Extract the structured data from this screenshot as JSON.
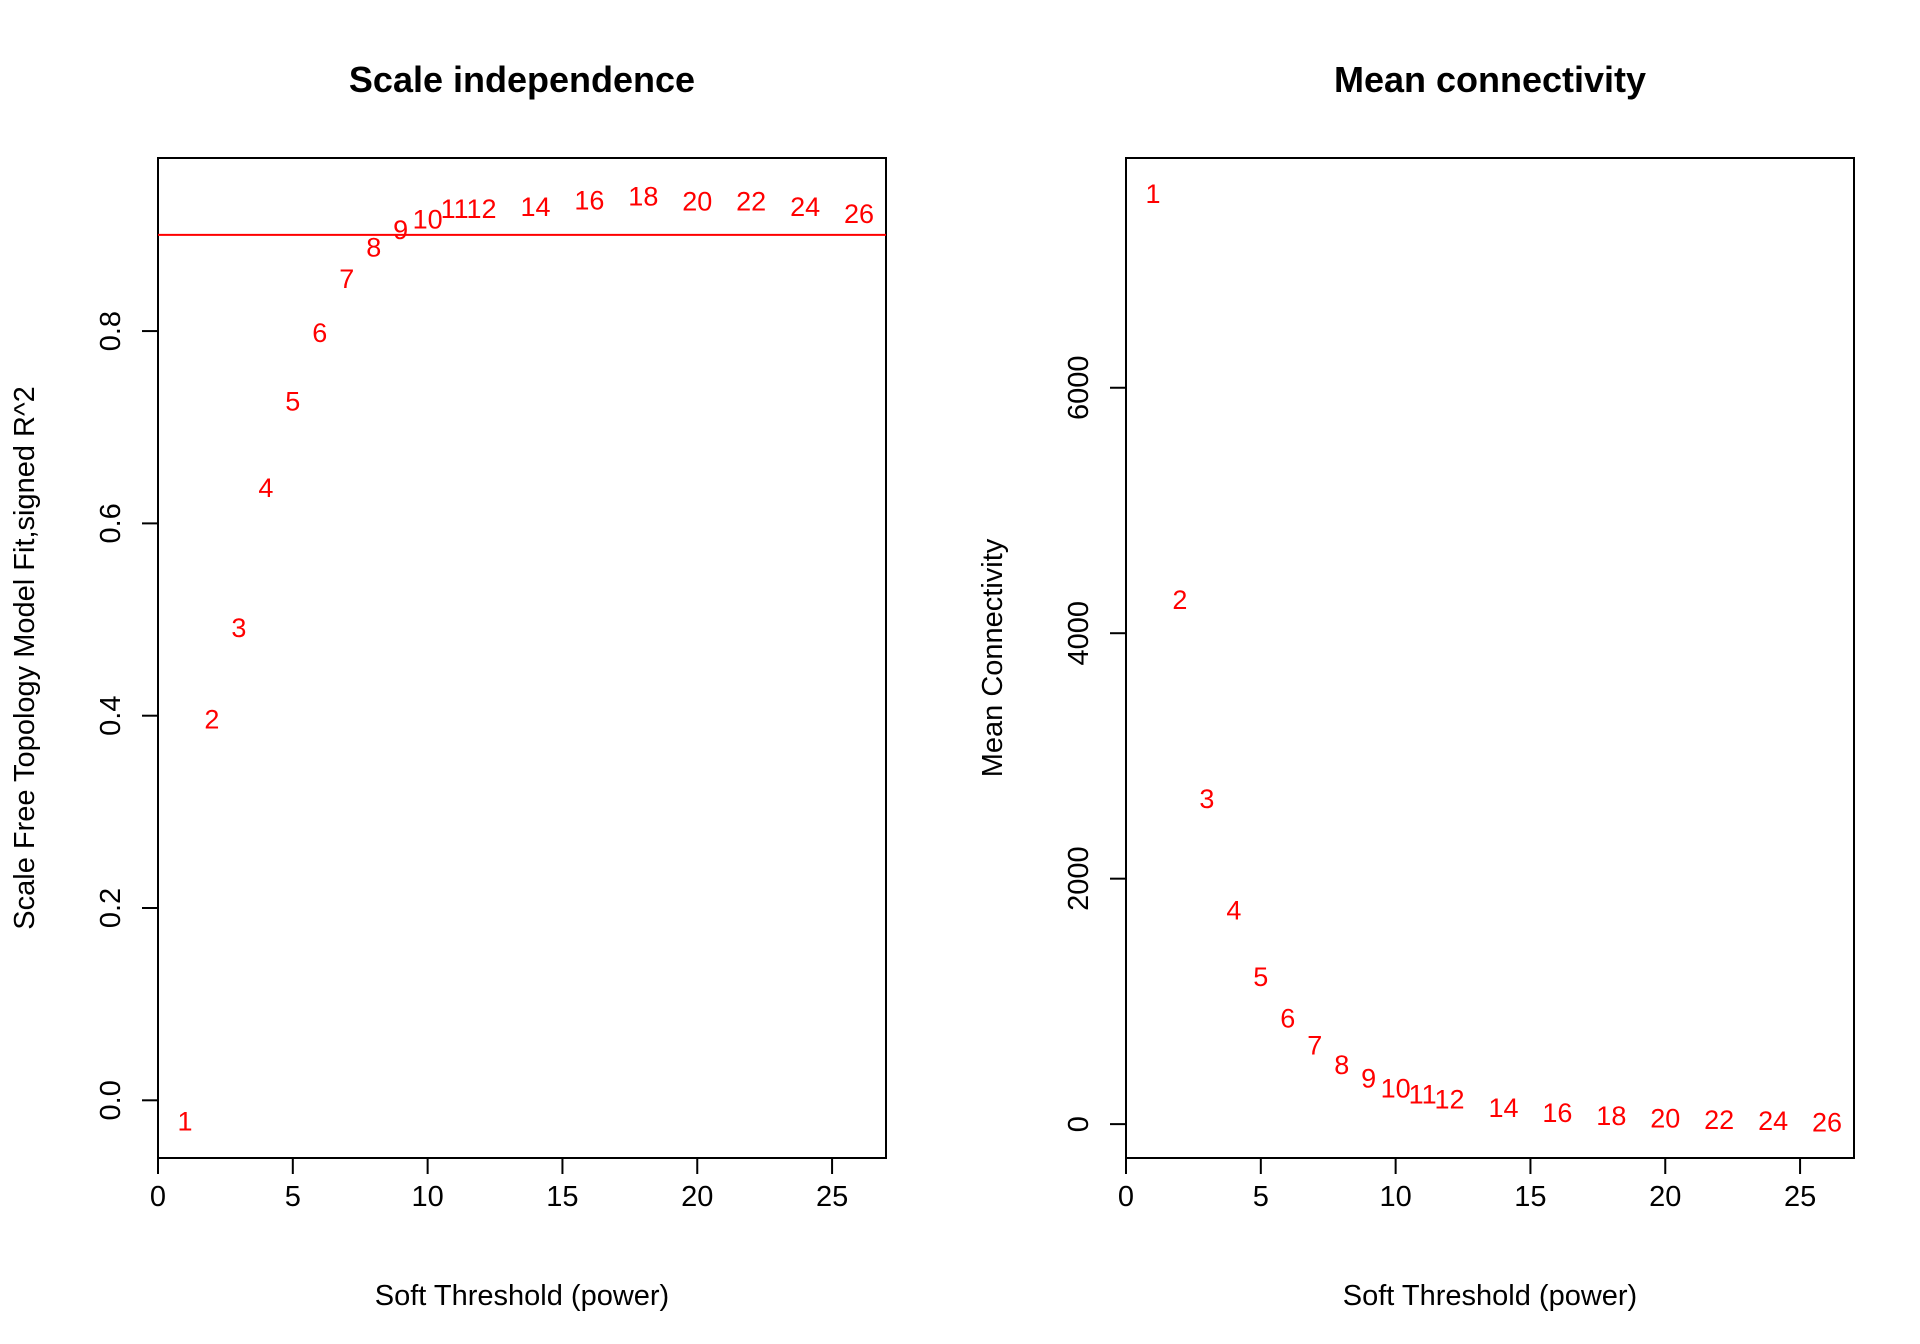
{
  "colors": {
    "points": "#ff0000",
    "abline": "#ff0000",
    "axes": "#000000",
    "background": "#ffffff"
  },
  "chart_data": [
    {
      "type": "scatter",
      "title": "Scale independence",
      "xlabel": "Soft Threshold (power)",
      "ylabel": "Scale Free Topology Model Fit,signed R^2",
      "xlim": [
        0,
        27
      ],
      "ylim": [
        -0.06,
        0.98
      ],
      "xticks": [
        0,
        5,
        10,
        15,
        20,
        25
      ],
      "yticks": [
        0.0,
        0.2,
        0.4,
        0.6,
        0.8
      ],
      "ytick_labels": [
        "0.0",
        "0.2",
        "0.4",
        "0.6",
        "0.8"
      ],
      "hline": 0.9,
      "grid": false,
      "marker": "text labels (power)",
      "points": [
        {
          "label": "1",
          "x": 1,
          "y": -0.022
        },
        {
          "label": "2",
          "x": 2,
          "y": 0.396
        },
        {
          "label": "3",
          "x": 3,
          "y": 0.491
        },
        {
          "label": "4",
          "x": 4,
          "y": 0.637
        },
        {
          "label": "5",
          "x": 5,
          "y": 0.727
        },
        {
          "label": "6",
          "x": 6,
          "y": 0.798
        },
        {
          "label": "7",
          "x": 7,
          "y": 0.854
        },
        {
          "label": "8",
          "x": 8,
          "y": 0.887
        },
        {
          "label": "9",
          "x": 9,
          "y": 0.905
        },
        {
          "label": "10",
          "x": 10,
          "y": 0.916
        },
        {
          "label": "11",
          "x": 11,
          "y": 0.927
        },
        {
          "label": "12",
          "x": 12,
          "y": 0.927
        },
        {
          "label": "14",
          "x": 14,
          "y": 0.929
        },
        {
          "label": "16",
          "x": 16,
          "y": 0.936
        },
        {
          "label": "18",
          "x": 18,
          "y": 0.94
        },
        {
          "label": "20",
          "x": 20,
          "y": 0.935
        },
        {
          "label": "22",
          "x": 22,
          "y": 0.935
        },
        {
          "label": "24",
          "x": 24,
          "y": 0.929
        },
        {
          "label": "26",
          "x": 26,
          "y": 0.922
        }
      ]
    },
    {
      "type": "scatter",
      "title": "Mean connectivity",
      "xlabel": "Soft Threshold (power)",
      "ylabel": "Mean Connectivity",
      "xlim": [
        0,
        27
      ],
      "ylim": [
        -276,
        7872
      ],
      "xticks": [
        0,
        5,
        10,
        15,
        20,
        25
      ],
      "yticks": [
        0,
        2000,
        4000,
        6000
      ],
      "ytick_labels": [
        "0",
        "2000",
        "4000",
        "6000"
      ],
      "grid": false,
      "marker": "text labels (power)",
      "points": [
        {
          "label": "1",
          "x": 1,
          "y": 7580
        },
        {
          "label": "2",
          "x": 2,
          "y": 4270
        },
        {
          "label": "3",
          "x": 3,
          "y": 2650
        },
        {
          "label": "4",
          "x": 4,
          "y": 1740
        },
        {
          "label": "5",
          "x": 5,
          "y": 1200
        },
        {
          "label": "6",
          "x": 6,
          "y": 860
        },
        {
          "label": "7",
          "x": 7,
          "y": 640
        },
        {
          "label": "8",
          "x": 8,
          "y": 480
        },
        {
          "label": "9",
          "x": 9,
          "y": 370
        },
        {
          "label": "10",
          "x": 10,
          "y": 290
        },
        {
          "label": "11",
          "x": 11,
          "y": 240
        },
        {
          "label": "12",
          "x": 12,
          "y": 200
        },
        {
          "label": "14",
          "x": 14,
          "y": 130
        },
        {
          "label": "16",
          "x": 16,
          "y": 90
        },
        {
          "label": "18",
          "x": 18,
          "y": 65
        },
        {
          "label": "20",
          "x": 20,
          "y": 45
        },
        {
          "label": "22",
          "x": 22,
          "y": 35
        },
        {
          "label": "24",
          "x": 24,
          "y": 25
        },
        {
          "label": "26",
          "x": 26,
          "y": 15
        }
      ]
    }
  ]
}
